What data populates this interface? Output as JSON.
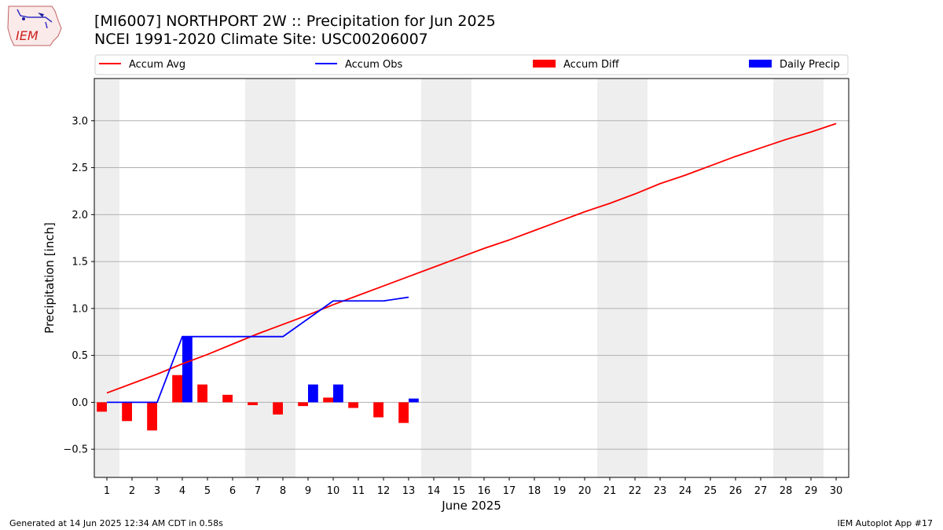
{
  "header": {
    "title_line1": "[MI6007] NORTHPORT 2W :: Precipitation for Jun 2025",
    "title_line2": "NCEI 1991-2020 Climate Site: USC00206007"
  },
  "logo": {
    "text": "IEM"
  },
  "footer": {
    "left": "Generated at 14 Jun 2025 12:34 AM CDT in 0.58s",
    "right": "IEM Autoplot App #17"
  },
  "colors": {
    "avg": "#ff0000",
    "obs": "#0000ff",
    "diff": "#ff0000",
    "daily": "#0000ff",
    "weekend": "#eeeeee",
    "grid": "#b0b0b0"
  },
  "chart_data": {
    "type": "bar",
    "xlabel": "June 2025",
    "ylabel": "Precipitation [inch]",
    "xlim": [
      0.5,
      30.5
    ],
    "ylim": [
      -0.8,
      3.45
    ],
    "yticks": [
      -0.5,
      0.0,
      0.5,
      1.0,
      1.5,
      2.0,
      2.5,
      3.0
    ],
    "ytick_labels": [
      "−0.5",
      "0.0",
      "0.5",
      "1.0",
      "1.5",
      "2.0",
      "2.5",
      "3.0"
    ],
    "days": [
      1,
      2,
      3,
      4,
      5,
      6,
      7,
      8,
      9,
      10,
      11,
      12,
      13,
      14,
      15,
      16,
      17,
      18,
      19,
      20,
      21,
      22,
      23,
      24,
      25,
      26,
      27,
      28,
      29,
      30
    ],
    "weekend_days": [
      1,
      7,
      8,
      14,
      15,
      21,
      22,
      28,
      29
    ],
    "grid": "y",
    "legend_placement": "top",
    "series": [
      {
        "name": "Accum Avg",
        "kind": "line",
        "values": [
          0.1,
          0.2,
          0.3,
          0.41,
          0.51,
          0.62,
          0.73,
          0.83,
          0.93,
          1.04,
          1.14,
          1.24,
          1.34,
          1.44,
          1.54,
          1.64,
          1.73,
          1.83,
          1.93,
          2.03,
          2.12,
          2.22,
          2.33,
          2.42,
          2.52,
          2.62,
          2.71,
          2.8,
          2.88,
          2.97
        ]
      },
      {
        "name": "Accum Obs",
        "kind": "line",
        "values": [
          0.0,
          0.0,
          0.0,
          0.7,
          0.7,
          0.7,
          0.7,
          0.7,
          0.89,
          1.08,
          1.08,
          1.08,
          1.12
        ]
      },
      {
        "name": "Accum Diff",
        "kind": "bar",
        "values": [
          -0.1,
          -0.2,
          -0.3,
          0.29,
          0.19,
          0.08,
          -0.03,
          -0.13,
          -0.04,
          0.05,
          -0.06,
          -0.16,
          -0.22
        ]
      },
      {
        "name": "Daily Precip",
        "kind": "bar",
        "values": [
          0.0,
          0.0,
          0.0,
          0.7,
          0.0,
          0.0,
          0.0,
          0.0,
          0.19,
          0.19,
          0.0,
          0.0,
          0.04
        ]
      }
    ]
  }
}
